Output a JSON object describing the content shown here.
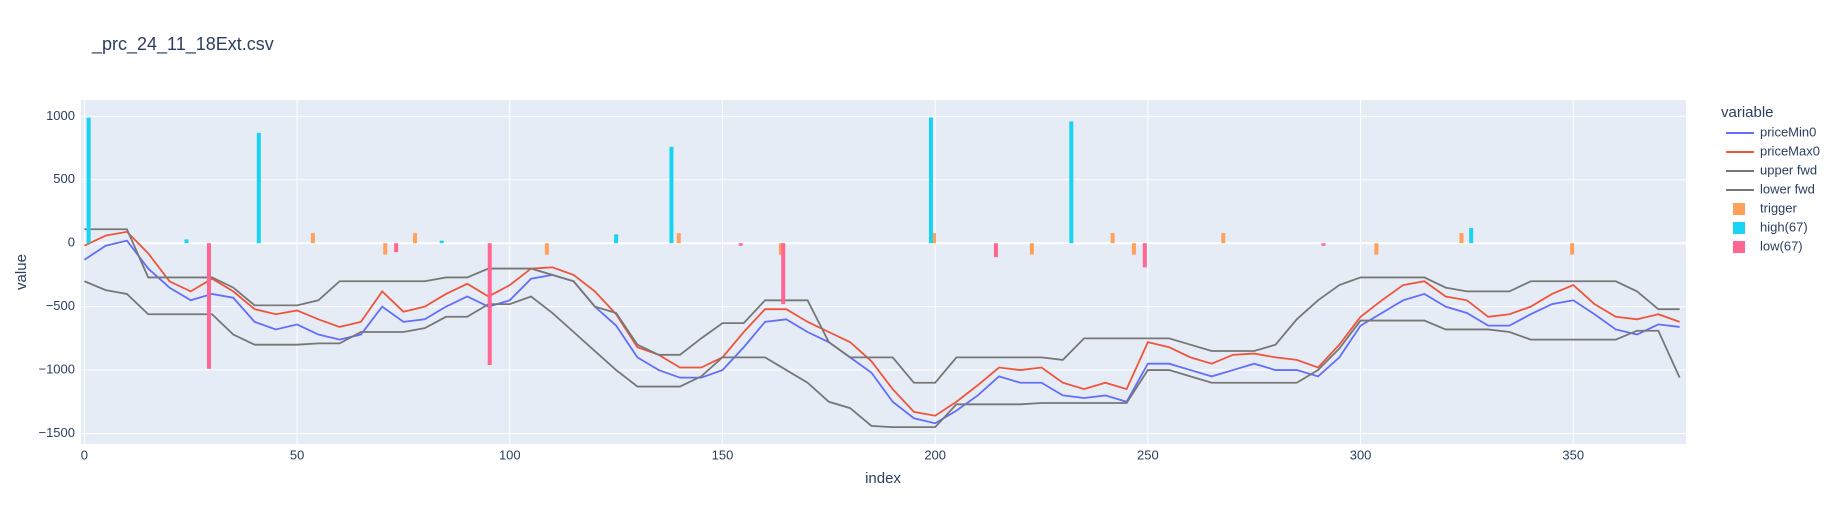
{
  "chart_data": {
    "type": "line",
    "title": "_prc_24_11_18Ext.csv",
    "x_label": "index",
    "y_label": "value",
    "legend_title": "variable",
    "legend_position": "right",
    "grid": true,
    "xlim": [
      -0.8,
      376.5
    ],
    "ylim": [
      -1583,
      1129
    ],
    "xticks": [
      0,
      50,
      100,
      150,
      200,
      250,
      300,
      350
    ],
    "yticks": [
      1000,
      500,
      0,
      {
        "value": -500,
        "label": "−500"
      },
      {
        "value": -1000,
        "label": "−1000"
      },
      {
        "value": -1500,
        "label": "−1500"
      }
    ],
    "x": [
      0,
      5,
      10,
      15,
      20,
      25,
      30,
      35,
      40,
      45,
      50,
      55,
      60,
      65,
      70,
      75,
      80,
      85,
      90,
      95,
      100,
      105,
      110,
      115,
      120,
      125,
      130,
      135,
      140,
      145,
      150,
      155,
      160,
      165,
      170,
      175,
      180,
      185,
      190,
      195,
      200,
      205,
      210,
      215,
      220,
      225,
      230,
      235,
      240,
      245,
      250,
      255,
      260,
      265,
      270,
      275,
      280,
      285,
      290,
      295,
      300,
      305,
      310,
      315,
      320,
      325,
      330,
      335,
      340,
      345,
      350,
      355,
      360,
      365,
      370,
      375
    ],
    "series": [
      {
        "name": "priceMin0",
        "type": "line",
        "color": "#636efa",
        "values": [
          -130,
          -20,
          20,
          -200,
          -350,
          -450,
          -400,
          -430,
          -620,
          -680,
          -640,
          -720,
          -760,
          -720,
          -500,
          -620,
          -600,
          -500,
          -420,
          -500,
          -450,
          -280,
          -250,
          -300,
          -500,
          -650,
          -900,
          -1000,
          -1060,
          -1060,
          -1000,
          -820,
          -620,
          -600,
          -700,
          -780,
          -900,
          -1020,
          -1250,
          -1380,
          -1420,
          -1320,
          -1200,
          -1050,
          -1100,
          -1100,
          -1200,
          -1220,
          -1200,
          -1250,
          -950,
          -950,
          -1000,
          -1050,
          -1000,
          -950,
          -1000,
          -1000,
          -1050,
          -900,
          -650,
          -550,
          -450,
          -400,
          -500,
          -550,
          -650,
          -650,
          -560,
          -480,
          -450,
          -560,
          -680,
          -720,
          -640,
          -660
        ]
      },
      {
        "name": "priceMax0",
        "type": "line",
        "color": "#EF553B",
        "values": [
          -20,
          60,
          90,
          -80,
          -300,
          -380,
          -280,
          -380,
          -520,
          -560,
          -530,
          -600,
          -660,
          -620,
          -380,
          -540,
          -500,
          -400,
          -320,
          -420,
          -330,
          -200,
          -190,
          -250,
          -380,
          -560,
          -820,
          -880,
          -980,
          -980,
          -900,
          -700,
          -520,
          -520,
          -620,
          -700,
          -780,
          -930,
          -1150,
          -1330,
          -1360,
          -1250,
          -1120,
          -980,
          -1000,
          -980,
          -1100,
          -1150,
          -1100,
          -1150,
          -780,
          -820,
          -900,
          -950,
          -880,
          -870,
          -900,
          -920,
          -980,
          -800,
          -580,
          -450,
          -330,
          -300,
          -420,
          -450,
          -580,
          -560,
          -500,
          -400,
          -330,
          -480,
          -580,
          -600,
          -560,
          -620
        ]
      },
      {
        "name": "upper fwd",
        "type": "line",
        "color": "#777777",
        "values": [
          110,
          110,
          110,
          -270,
          -270,
          -270,
          -270,
          -350,
          -490,
          -490,
          -490,
          -450,
          -300,
          -300,
          -300,
          -300,
          -300,
          -270,
          -270,
          -200,
          -200,
          -200,
          -250,
          -300,
          -500,
          -550,
          -800,
          -880,
          -880,
          -750,
          -630,
          -630,
          -450,
          -450,
          -450,
          -780,
          -900,
          -900,
          -900,
          -1100,
          -1100,
          -900,
          -900,
          -900,
          -900,
          -900,
          -920,
          -750,
          -750,
          -750,
          -750,
          -750,
          -800,
          -850,
          -850,
          -850,
          -800,
          -600,
          -450,
          -330,
          -270,
          -270,
          -270,
          -270,
          -350,
          -380,
          -380,
          -380,
          -300,
          -300,
          -300,
          -300,
          -300,
          -380,
          -520,
          -520
        ]
      },
      {
        "name": "lower fwd",
        "type": "line",
        "color": "#777777",
        "values": [
          -300,
          -370,
          -400,
          -560,
          -560,
          -560,
          -560,
          -720,
          -800,
          -800,
          -800,
          -790,
          -790,
          -700,
          -700,
          -700,
          -670,
          -580,
          -580,
          -480,
          -480,
          -420,
          -550,
          -700,
          -850,
          -1000,
          -1130,
          -1130,
          -1130,
          -1050,
          -900,
          -900,
          -900,
          -1000,
          -1100,
          -1250,
          -1300,
          -1440,
          -1450,
          -1450,
          -1450,
          -1270,
          -1270,
          -1270,
          -1270,
          -1260,
          -1260,
          -1260,
          -1260,
          -1260,
          -1000,
          -1000,
          -1050,
          -1100,
          -1100,
          -1100,
          -1100,
          -1100,
          -1000,
          -830,
          -610,
          -610,
          -610,
          -610,
          -680,
          -680,
          -680,
          -700,
          -760,
          -760,
          -760,
          -760,
          -760,
          -690,
          -690,
          -1060
        ]
      },
      {
        "name": "trigger",
        "type": "bar",
        "color": "#FFA15A",
        "x": [
          54,
          71,
          78,
          109,
          140,
          164,
          200,
          223,
          242,
          247,
          268,
          304,
          324,
          350
        ],
        "values": [
          80,
          -90,
          80,
          -90,
          80,
          -90,
          80,
          -90,
          80,
          -90,
          80,
          -90,
          80,
          -90
        ]
      },
      {
        "name": "high(67)",
        "type": "bar",
        "color": "#19d3f3",
        "x": [
          1,
          24,
          41,
          84,
          125,
          138,
          199,
          232,
          326
        ],
        "values": [
          990,
          30,
          870,
          20,
          70,
          760,
          990,
          960,
          120
        ]
      },
      {
        "name": "low(67)",
        "type": "bar",
        "color": "#FF6692",
        "x": [
          29,
          73,
          95,
          154,
          164,
          214,
          249,
          291
        ],
        "values": [
          -990,
          -70,
          -960,
          -20,
          -480,
          -110,
          -190,
          -20
        ]
      }
    ]
  }
}
